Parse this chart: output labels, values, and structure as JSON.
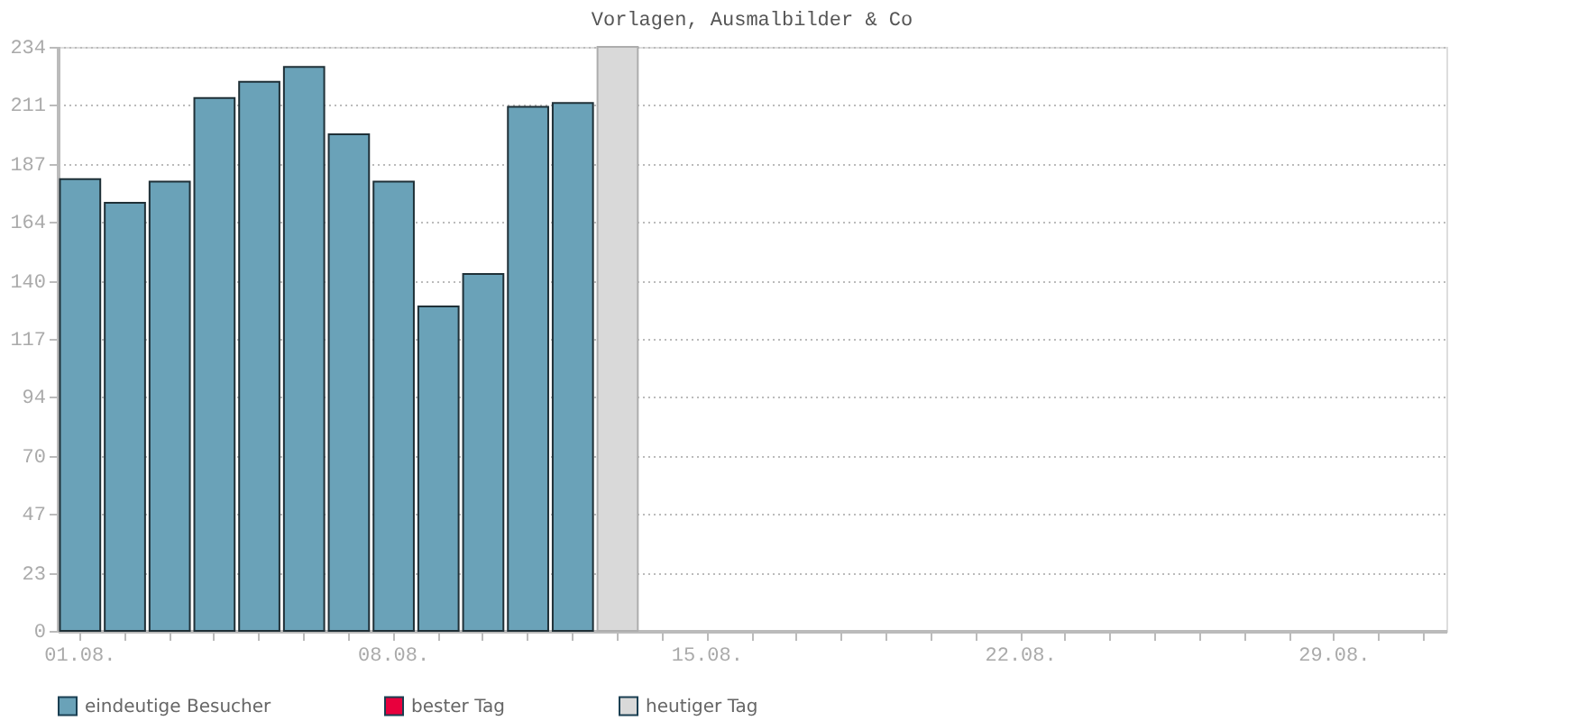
{
  "chart_data": {
    "type": "bar",
    "title": "Vorlagen, Ausmalbilder & Co",
    "categories": [
      "01.08.",
      null,
      null,
      null,
      null,
      null,
      null,
      "08.08.",
      null,
      null,
      null,
      null,
      null,
      null,
      "15.08.",
      null,
      null,
      null,
      null,
      null,
      null,
      "22.08.",
      null,
      null,
      null,
      null,
      null,
      null,
      "29.08.",
      null,
      null
    ],
    "series": [
      {
        "name": "eindeutige Besucher",
        "color": "#6aa2b8",
        "values": [
          181,
          171.5,
          180,
          213.5,
          220,
          226,
          199,
          180,
          130,
          143,
          210,
          211.5,
          null,
          null,
          null,
          null,
          null,
          null,
          null,
          null,
          null,
          null,
          null,
          null,
          null,
          null,
          null,
          null,
          null,
          null,
          null
        ]
      },
      {
        "name": "bester Tag",
        "color": "#e8003d",
        "values": [
          null,
          null,
          null,
          null,
          null,
          null,
          null,
          null,
          null,
          null,
          null,
          null,
          null,
          null,
          null,
          null,
          null,
          null,
          null,
          null,
          null,
          null,
          null,
          null,
          null,
          null,
          null,
          null,
          null,
          null,
          null
        ]
      },
      {
        "name": "heutiger Tag",
        "color": "#d9d9d9",
        "values": [
          null,
          null,
          null,
          null,
          null,
          null,
          null,
          null,
          null,
          null,
          null,
          null,
          234,
          null,
          null,
          null,
          null,
          null,
          null,
          null,
          null,
          null,
          null,
          null,
          null,
          null,
          null,
          null,
          null,
          null,
          null
        ]
      }
    ],
    "ylim": [
      0,
      234
    ],
    "yticks": [
      0,
      23,
      47,
      70,
      94,
      117,
      140,
      164,
      187,
      211,
      234
    ],
    "grid": "y",
    "legend": "bottom"
  }
}
